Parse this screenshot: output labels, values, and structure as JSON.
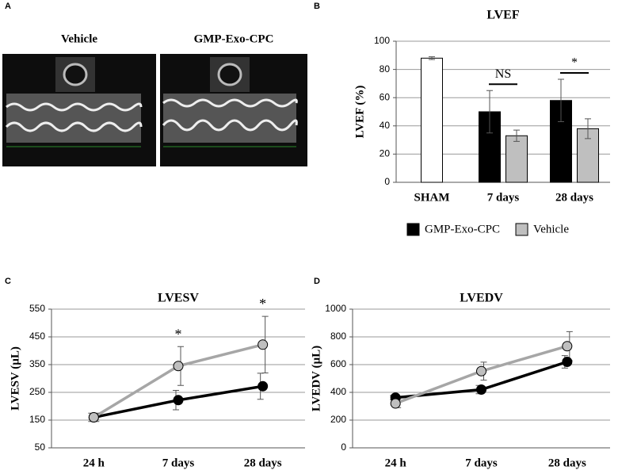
{
  "panel_a": {
    "label": "A",
    "left_title": "Vehicle",
    "right_title": "GMP-Exo-CPC"
  },
  "chart_data": [
    {
      "type": "bar",
      "panel": "B",
      "title": "LVEF",
      "ylabel": "LVEF (%)",
      "categories": [
        "SHAM",
        "7 days",
        "28 days"
      ],
      "series": [
        {
          "color": "#ffffff",
          "values": [
            88,
            null,
            null
          ],
          "errors": [
            1,
            null,
            null
          ]
        },
        {
          "name": "GMP-Exo-CPC",
          "color": "#000000",
          "values": [
            null,
            50,
            58
          ],
          "errors": [
            null,
            15,
            15
          ]
        },
        {
          "name": "Vehicle",
          "color": "#bfbfbf",
          "values": [
            null,
            33,
            38
          ],
          "errors": [
            null,
            4,
            7
          ]
        }
      ],
      "annotations": [
        {
          "text": "NS",
          "category": 1
        },
        {
          "text": "*",
          "category": 2
        }
      ],
      "ylim": [
        0,
        100
      ],
      "yticks": [
        0,
        20,
        40,
        60,
        80,
        100
      ],
      "grid": true
    },
    {
      "type": "line",
      "panel": "C",
      "title": "LVESV",
      "ylabel": "LVESV (µL)",
      "categories": [
        "24 h",
        "7 days",
        "28 days"
      ],
      "series": [
        {
          "name": "GMP-Exo-CPC",
          "color": "#000000",
          "values": [
            160,
            222,
            272
          ],
          "errors": [
            15,
            35,
            47
          ]
        },
        {
          "name": "Vehicle",
          "color": "#a6a6a6",
          "values": [
            160,
            345,
            422
          ],
          "errors": [
            15,
            70,
            102
          ]
        }
      ],
      "annotations": [
        {
          "text": "*",
          "category": 1
        },
        {
          "text": "*",
          "category": 2
        }
      ],
      "ylim": [
        50,
        550
      ],
      "yticks": [
        50,
        150,
        250,
        350,
        450,
        550
      ],
      "grid": true
    },
    {
      "type": "line",
      "panel": "D",
      "title": "LVEDV",
      "ylabel": "LVEDV (µL)",
      "categories": [
        "24 h",
        "7 days",
        "28 days"
      ],
      "series": [
        {
          "name": "GMP-Exo-CPC",
          "color": "#000000",
          "values": [
            362,
            420,
            620
          ],
          "errors": [
            15,
            30,
            45
          ]
        },
        {
          "name": "Vehicle",
          "color": "#a6a6a6",
          "values": [
            320,
            553,
            733
          ],
          "errors": [
            30,
            65,
            105
          ]
        }
      ],
      "ylim": [
        0,
        1000
      ],
      "yticks": [
        0,
        200,
        400,
        600,
        800,
        1000
      ],
      "grid": true
    }
  ]
}
